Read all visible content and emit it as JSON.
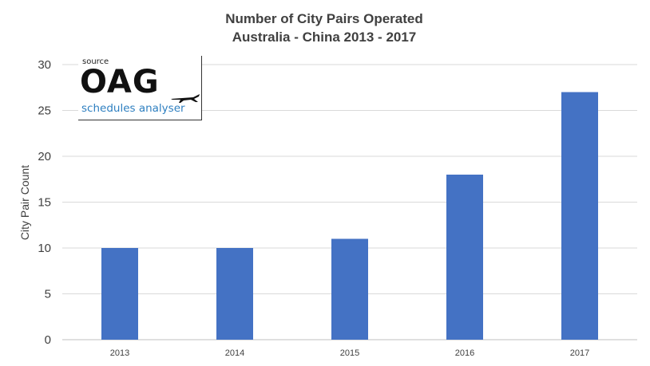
{
  "chart_data": {
    "type": "bar",
    "title": "Number of City Pairs Operated",
    "subtitle": "Australia - China 2013 - 2017",
    "xlabel": "",
    "ylabel": "City Pair Count",
    "categories": [
      "2013",
      "2014",
      "2015",
      "2016",
      "2017"
    ],
    "values": [
      10,
      10,
      11,
      18,
      27
    ],
    "ylim": [
      0,
      30
    ],
    "yticks": [
      "0",
      "5",
      "10",
      "15",
      "20",
      "25",
      "30"
    ],
    "grid": true,
    "bar_color": "#4472c4",
    "grid_color": "#d9d9d9"
  },
  "logo": {
    "source": "source",
    "name": "OAG",
    "tagline": "schedules analyser",
    "plane_icon": "airplane-icon"
  }
}
